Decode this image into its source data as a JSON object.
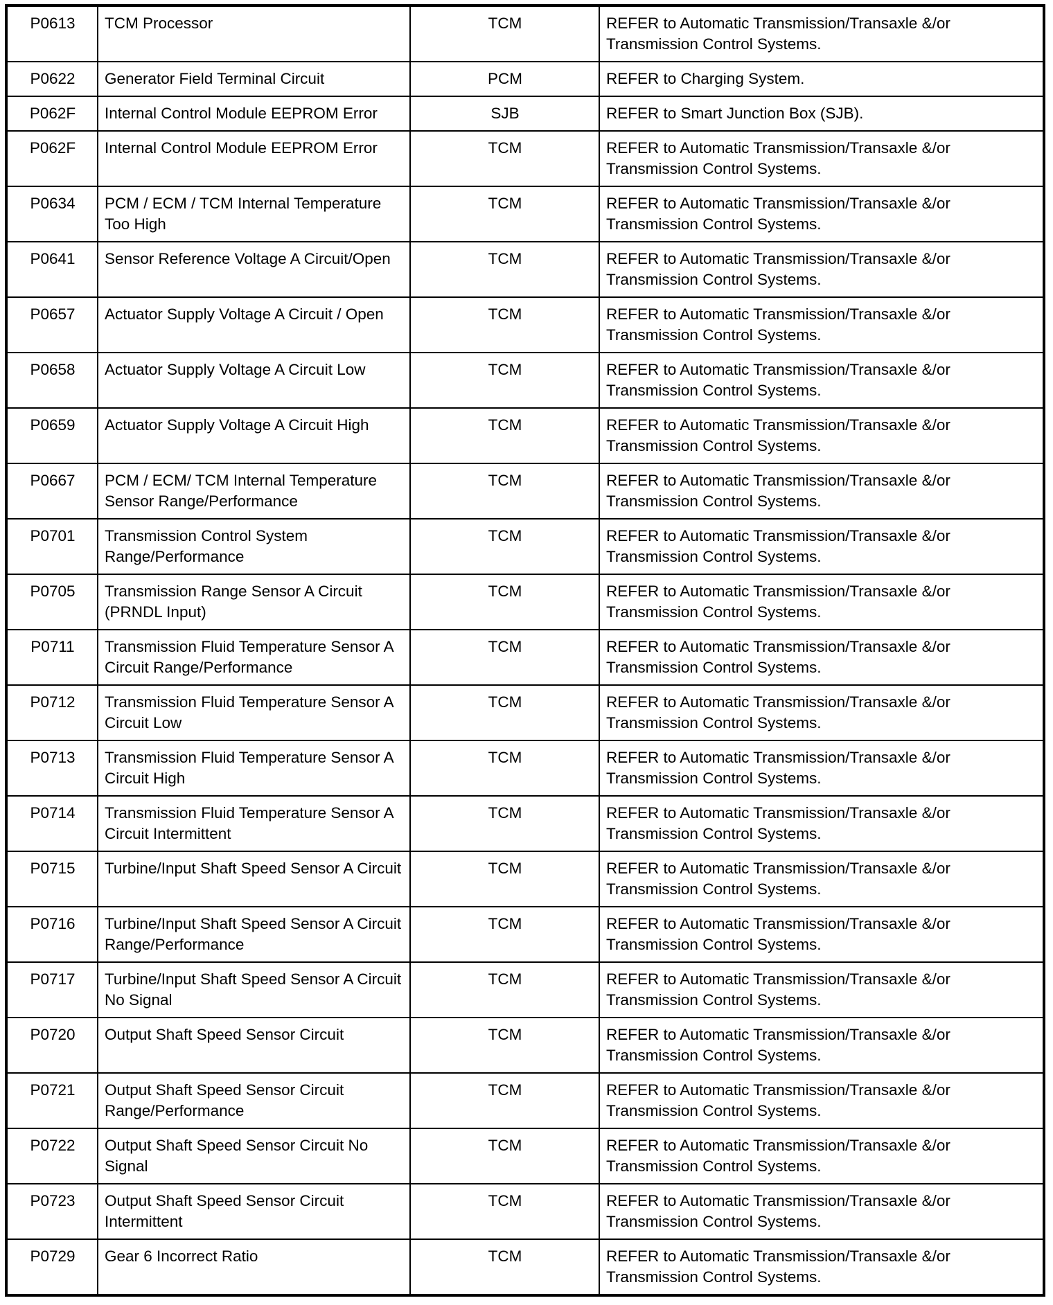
{
  "rows": [
    {
      "code": "P0613",
      "description": "TCM Processor",
      "module": "TCM",
      "action": "REFER to Automatic Transmission/Transaxle &/or Transmission Control Systems."
    },
    {
      "code": "P0622",
      "description": "Generator Field Terminal Circuit",
      "module": "PCM",
      "action": "REFER to Charging System."
    },
    {
      "code": "P062F",
      "description": "Internal Control Module EEPROM Error",
      "module": "SJB",
      "action": "REFER to Smart Junction Box (SJB)."
    },
    {
      "code": "P062F",
      "description": "Internal Control Module EEPROM Error",
      "module": "TCM",
      "action": "REFER to Automatic Transmission/Transaxle &/or Transmission Control Systems."
    },
    {
      "code": "P0634",
      "description": "PCM / ECM / TCM Internal Temperature Too High",
      "module": "TCM",
      "action": "REFER to Automatic Transmission/Transaxle &/or Transmission Control Systems."
    },
    {
      "code": "P0641",
      "description": "Sensor Reference Voltage A Circuit/Open",
      "module": "TCM",
      "action": "REFER to Automatic Transmission/Transaxle &/or Transmission Control Systems."
    },
    {
      "code": "P0657",
      "description": "Actuator Supply Voltage A Circuit / Open",
      "module": "TCM",
      "action": "REFER to Automatic Transmission/Transaxle &/or Transmission Control Systems."
    },
    {
      "code": "P0658",
      "description": "Actuator Supply Voltage A Circuit Low",
      "module": "TCM",
      "action": "REFER to Automatic Transmission/Transaxle &/or Transmission Control Systems."
    },
    {
      "code": "P0659",
      "description": "Actuator Supply Voltage A Circuit High",
      "module": "TCM",
      "action": "REFER to Automatic Transmission/Transaxle &/or Transmission Control Systems."
    },
    {
      "code": "P0667",
      "description": "PCM / ECM/ TCM Internal Temperature Sensor Range/Performance",
      "module": "TCM",
      "action": "REFER to Automatic Transmission/Transaxle &/or Transmission Control Systems."
    },
    {
      "code": "P0701",
      "description": "Transmission Control System Range/Performance",
      "module": "TCM",
      "action": "REFER to Automatic Transmission/Transaxle &/or Transmission Control Systems."
    },
    {
      "code": "P0705",
      "description": "Transmission Range Sensor A Circuit (PRNDL Input)",
      "module": "TCM",
      "action": "REFER to Automatic Transmission/Transaxle &/or Transmission Control Systems."
    },
    {
      "code": "P0711",
      "description": "Transmission Fluid Temperature Sensor A Circuit Range/Performance",
      "module": "TCM",
      "action": "REFER to Automatic Transmission/Transaxle &/or Transmission Control Systems."
    },
    {
      "code": "P0712",
      "description": "Transmission Fluid Temperature Sensor A Circuit Low",
      "module": "TCM",
      "action": "REFER to Automatic Transmission/Transaxle &/or Transmission Control Systems."
    },
    {
      "code": "P0713",
      "description": "Transmission Fluid Temperature Sensor A Circuit High",
      "module": "TCM",
      "action": "REFER to Automatic Transmission/Transaxle &/or Transmission Control Systems."
    },
    {
      "code": "P0714",
      "description": "Transmission Fluid Temperature Sensor A Circuit Intermittent",
      "module": "TCM",
      "action": "REFER to Automatic Transmission/Transaxle &/or Transmission Control Systems."
    },
    {
      "code": "P0715",
      "description": "Turbine/Input Shaft Speed Sensor A Circuit",
      "module": "TCM",
      "action": "REFER to Automatic Transmission/Transaxle &/or Transmission Control Systems."
    },
    {
      "code": "P0716",
      "description": "Turbine/Input Shaft Speed Sensor A Circuit Range/Performance",
      "module": "TCM",
      "action": "REFER to Automatic Transmission/Transaxle &/or Transmission Control Systems."
    },
    {
      "code": "P0717",
      "description": "Turbine/Input Shaft Speed Sensor A Circuit No Signal",
      "module": "TCM",
      "action": "REFER to Automatic Transmission/Transaxle &/or Transmission Control Systems."
    },
    {
      "code": "P0720",
      "description": "Output Shaft Speed Sensor Circuit",
      "module": "TCM",
      "action": "REFER to Automatic Transmission/Transaxle &/or Transmission Control Systems."
    },
    {
      "code": "P0721",
      "description": "Output Shaft Speed Sensor Circuit Range/Performance",
      "module": "TCM",
      "action": "REFER to Automatic Transmission/Transaxle &/or Transmission Control Systems."
    },
    {
      "code": "P0722",
      "description": "Output Shaft Speed Sensor Circuit No Signal",
      "module": "TCM",
      "action": "REFER to Automatic Transmission/Transaxle &/or Transmission Control Systems."
    },
    {
      "code": "P0723",
      "description": "Output Shaft Speed Sensor Circuit Intermittent",
      "module": "TCM",
      "action": "REFER to Automatic Transmission/Transaxle &/or Transmission Control Systems."
    },
    {
      "code": "P0729",
      "description": "Gear 6 Incorrect Ratio",
      "module": "TCM",
      "action": "REFER to Automatic Transmission/Transaxle &/or Transmission Control Systems."
    }
  ]
}
